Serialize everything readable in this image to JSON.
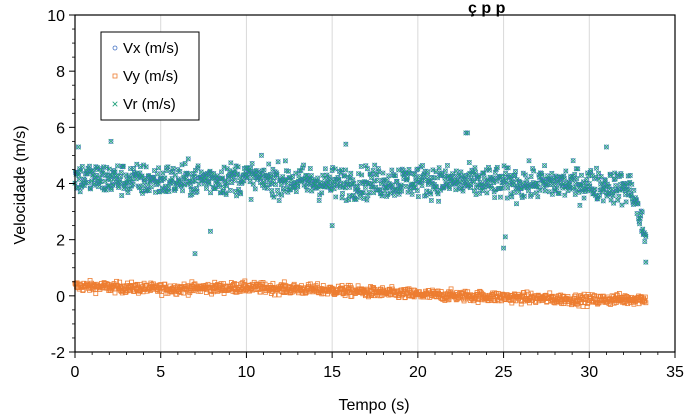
{
  "chart_data": {
    "type": "scatter",
    "title_visible_fragment": "ç                    p    p",
    "xlabel": "Tempo (s)",
    "ylabel": "Velocidade (m/s)",
    "xlim": [
      0,
      35
    ],
    "ylim": [
      -2,
      10
    ],
    "x_ticks": [
      "0",
      "5",
      "10",
      "15",
      "20",
      "25",
      "30",
      "35"
    ],
    "y_ticks": [
      "-2",
      "0",
      "2",
      "4",
      "6",
      "8",
      "10"
    ],
    "grid": "vertical",
    "legend_position": "top-left",
    "colors": {
      "Vx": "#4472c4",
      "Vy": "#ed7d31",
      "Vr": "#1a9e77"
    },
    "series": [
      {
        "name": "Vx (m/s)",
        "marker": "circle",
        "trend": [
          [
            0,
            4.2
          ],
          [
            5,
            4.1
          ],
          [
            10,
            4.2
          ],
          [
            15,
            4.0
          ],
          [
            20,
            4.1
          ],
          [
            25,
            4.0
          ],
          [
            30,
            4.0
          ],
          [
            32.5,
            3.8
          ],
          [
            33.2,
            2.2
          ]
        ],
        "spread": 0.55
      },
      {
        "name": "Vy (m/s)",
        "marker": "square",
        "trend": [
          [
            0,
            0.35
          ],
          [
            5,
            0.25
          ],
          [
            10,
            0.3
          ],
          [
            15,
            0.2
          ],
          [
            20,
            0.05
          ],
          [
            25,
            -0.05
          ],
          [
            30,
            -0.15
          ],
          [
            33.3,
            -0.1
          ]
        ],
        "spread": 0.18
      },
      {
        "name": "Vr (m/s)",
        "marker": "x",
        "trend": [
          [
            0,
            4.2
          ],
          [
            5,
            4.1
          ],
          [
            10,
            4.2
          ],
          [
            15,
            4.0
          ],
          [
            20,
            4.1
          ],
          [
            25,
            4.0
          ],
          [
            30,
            4.0
          ],
          [
            32.5,
            3.8
          ],
          [
            33.2,
            2.2
          ]
        ],
        "spread": 0.55
      }
    ],
    "outliers": [
      {
        "x": 7.0,
        "y": 1.5
      },
      {
        "x": 22.8,
        "y": 5.8
      },
      {
        "x": 22.9,
        "y": 5.8
      },
      {
        "x": 25.1,
        "y": 2.1
      },
      {
        "x": 25.0,
        "y": 1.7
      },
      {
        "x": 33.3,
        "y": 1.2
      },
      {
        "x": 15.8,
        "y": 5.4
      },
      {
        "x": 2.1,
        "y": 5.5
      },
      {
        "x": 0.2,
        "y": 5.3
      },
      {
        "x": 7.9,
        "y": 2.3
      },
      {
        "x": 15.0,
        "y": 2.5
      },
      {
        "x": 31.0,
        "y": 5.3
      }
    ]
  }
}
